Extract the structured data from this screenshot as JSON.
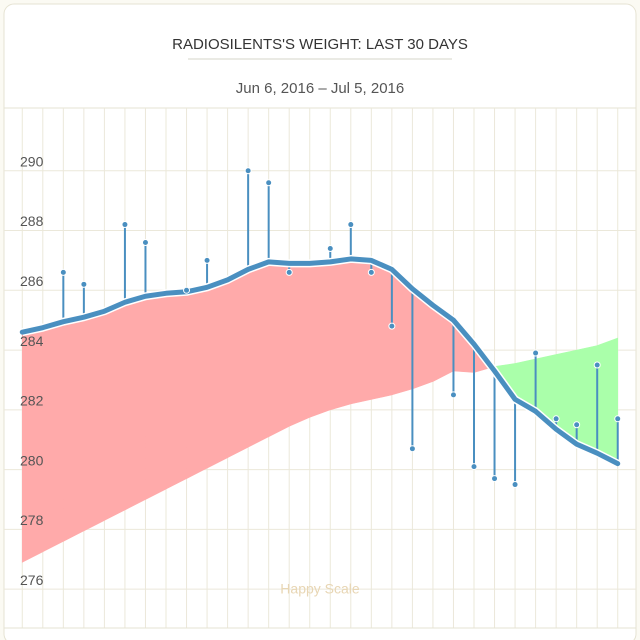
{
  "chart_data": {
    "type": "line",
    "title": "RADIOSILENTS'S WEIGHT: LAST 30 DAYS",
    "subtitle": "Jun 6, 2016 – Jul 5, 2016",
    "watermark": "Happy Scale",
    "xlim": [
      -0.5,
      29.5
    ],
    "ylim": [
      274.7,
      292.1
    ],
    "yticks": [
      276,
      278,
      280,
      282,
      284,
      286,
      288,
      290
    ],
    "grid": true,
    "above_color": "#ffaaaa",
    "below_color": "#aaffaa",
    "series": [
      {
        "color": "#4a8fc0",
        "x": [
          2,
          3,
          5,
          6,
          8,
          9,
          11,
          12,
          13,
          15,
          16,
          17,
          18,
          19,
          21,
          22,
          23,
          24,
          25,
          26,
          27,
          28,
          29
        ],
        "values": [
          286.6,
          286.2,
          288.2,
          287.6,
          286.0,
          287.0,
          290.0,
          289.6,
          286.6,
          287.4,
          288.2,
          286.6,
          284.8,
          280.7,
          282.5,
          280.1,
          279.7,
          279.5,
          283.9,
          281.7,
          281.5,
          283.5,
          281.7
        ]
      },
      {
        "color": "#4a8fc0",
        "x": [
          0,
          1,
          2,
          3,
          4,
          5,
          6,
          7,
          8,
          9,
          10,
          11,
          12,
          13,
          14,
          15,
          16,
          17,
          18,
          19,
          20,
          21,
          22,
          23,
          24,
          25,
          26,
          27,
          28,
          29
        ],
        "values": [
          284.6,
          284.75,
          284.95,
          285.1,
          285.3,
          285.6,
          285.8,
          285.9,
          285.95,
          286.1,
          286.35,
          286.7,
          286.95,
          286.9,
          286.9,
          286.95,
          287.05,
          287.0,
          286.7,
          286.05,
          285.5,
          285.0,
          284.2,
          283.3,
          282.35,
          281.95,
          281.35,
          280.85,
          280.55,
          280.2
        ]
      },
      {
        "color": "#d8a0a0",
        "x": [
          0,
          1,
          2,
          3,
          4,
          5,
          6,
          7,
          8,
          9,
          10,
          11,
          12,
          13,
          14,
          15,
          16,
          17,
          18,
          19,
          20,
          21,
          22,
          23,
          24,
          25,
          26,
          27,
          28,
          29
        ],
        "values": [
          276.9,
          277.25,
          277.6,
          277.95,
          278.3,
          278.65,
          279.0,
          279.35,
          279.7,
          280.05,
          280.4,
          280.75,
          281.1,
          281.45,
          281.75,
          282.0,
          282.2,
          282.35,
          282.5,
          282.7,
          282.95,
          283.3,
          283.25,
          283.45,
          283.55,
          283.7,
          283.85,
          284.0,
          284.15,
          284.4
        ]
      }
    ]
  }
}
